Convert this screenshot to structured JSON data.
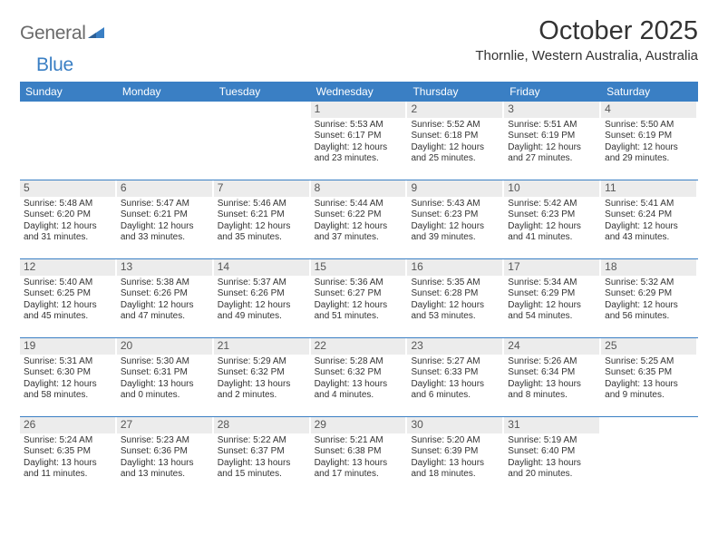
{
  "brand": {
    "part1": "General",
    "part2": "Blue"
  },
  "title": "October 2025",
  "location": "Thornlie, Western Australia, Australia",
  "dow": [
    "Sunday",
    "Monday",
    "Tuesday",
    "Wednesday",
    "Thursday",
    "Friday",
    "Saturday"
  ],
  "colors": {
    "header_bg": "#3a7fc4",
    "daynum_bg": "#ececec",
    "text": "#333333",
    "logo_gray": "#6a6a6a"
  },
  "weeks": [
    [
      {
        "n": "",
        "empty": true
      },
      {
        "n": "",
        "empty": true
      },
      {
        "n": "",
        "empty": true
      },
      {
        "n": "1",
        "sr": "5:53 AM",
        "ss": "6:17 PM",
        "dl": "12 hours and 23 minutes."
      },
      {
        "n": "2",
        "sr": "5:52 AM",
        "ss": "6:18 PM",
        "dl": "12 hours and 25 minutes."
      },
      {
        "n": "3",
        "sr": "5:51 AM",
        "ss": "6:19 PM",
        "dl": "12 hours and 27 minutes."
      },
      {
        "n": "4",
        "sr": "5:50 AM",
        "ss": "6:19 PM",
        "dl": "12 hours and 29 minutes."
      }
    ],
    [
      {
        "n": "5",
        "sr": "5:48 AM",
        "ss": "6:20 PM",
        "dl": "12 hours and 31 minutes."
      },
      {
        "n": "6",
        "sr": "5:47 AM",
        "ss": "6:21 PM",
        "dl": "12 hours and 33 minutes."
      },
      {
        "n": "7",
        "sr": "5:46 AM",
        "ss": "6:21 PM",
        "dl": "12 hours and 35 minutes."
      },
      {
        "n": "8",
        "sr": "5:44 AM",
        "ss": "6:22 PM",
        "dl": "12 hours and 37 minutes."
      },
      {
        "n": "9",
        "sr": "5:43 AM",
        "ss": "6:23 PM",
        "dl": "12 hours and 39 minutes."
      },
      {
        "n": "10",
        "sr": "5:42 AM",
        "ss": "6:23 PM",
        "dl": "12 hours and 41 minutes."
      },
      {
        "n": "11",
        "sr": "5:41 AM",
        "ss": "6:24 PM",
        "dl": "12 hours and 43 minutes."
      }
    ],
    [
      {
        "n": "12",
        "sr": "5:40 AM",
        "ss": "6:25 PM",
        "dl": "12 hours and 45 minutes."
      },
      {
        "n": "13",
        "sr": "5:38 AM",
        "ss": "6:26 PM",
        "dl": "12 hours and 47 minutes."
      },
      {
        "n": "14",
        "sr": "5:37 AM",
        "ss": "6:26 PM",
        "dl": "12 hours and 49 minutes."
      },
      {
        "n": "15",
        "sr": "5:36 AM",
        "ss": "6:27 PM",
        "dl": "12 hours and 51 minutes."
      },
      {
        "n": "16",
        "sr": "5:35 AM",
        "ss": "6:28 PM",
        "dl": "12 hours and 53 minutes."
      },
      {
        "n": "17",
        "sr": "5:34 AM",
        "ss": "6:29 PM",
        "dl": "12 hours and 54 minutes."
      },
      {
        "n": "18",
        "sr": "5:32 AM",
        "ss": "6:29 PM",
        "dl": "12 hours and 56 minutes."
      }
    ],
    [
      {
        "n": "19",
        "sr": "5:31 AM",
        "ss": "6:30 PM",
        "dl": "12 hours and 58 minutes."
      },
      {
        "n": "20",
        "sr": "5:30 AM",
        "ss": "6:31 PM",
        "dl": "13 hours and 0 minutes."
      },
      {
        "n": "21",
        "sr": "5:29 AM",
        "ss": "6:32 PM",
        "dl": "13 hours and 2 minutes."
      },
      {
        "n": "22",
        "sr": "5:28 AM",
        "ss": "6:32 PM",
        "dl": "13 hours and 4 minutes."
      },
      {
        "n": "23",
        "sr": "5:27 AM",
        "ss": "6:33 PM",
        "dl": "13 hours and 6 minutes."
      },
      {
        "n": "24",
        "sr": "5:26 AM",
        "ss": "6:34 PM",
        "dl": "13 hours and 8 minutes."
      },
      {
        "n": "25",
        "sr": "5:25 AM",
        "ss": "6:35 PM",
        "dl": "13 hours and 9 minutes."
      }
    ],
    [
      {
        "n": "26",
        "sr": "5:24 AM",
        "ss": "6:35 PM",
        "dl": "13 hours and 11 minutes."
      },
      {
        "n": "27",
        "sr": "5:23 AM",
        "ss": "6:36 PM",
        "dl": "13 hours and 13 minutes."
      },
      {
        "n": "28",
        "sr": "5:22 AM",
        "ss": "6:37 PM",
        "dl": "13 hours and 15 minutes."
      },
      {
        "n": "29",
        "sr": "5:21 AM",
        "ss": "6:38 PM",
        "dl": "13 hours and 17 minutes."
      },
      {
        "n": "30",
        "sr": "5:20 AM",
        "ss": "6:39 PM",
        "dl": "13 hours and 18 minutes."
      },
      {
        "n": "31",
        "sr": "5:19 AM",
        "ss": "6:40 PM",
        "dl": "13 hours and 20 minutes."
      },
      {
        "n": "",
        "empty": true
      }
    ]
  ],
  "labels": {
    "sunrise": "Sunrise:",
    "sunset": "Sunset:",
    "daylight": "Daylight:"
  }
}
